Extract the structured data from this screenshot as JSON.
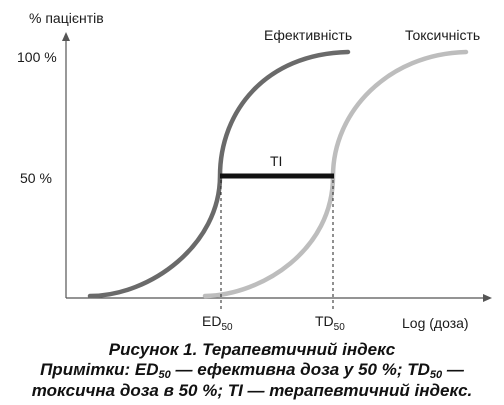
{
  "figure": {
    "y_axis_label": "% пацієнтів",
    "x_axis_label": "Log (доза)",
    "ticks": {
      "y100": "100 %",
      "y50": "50 %"
    },
    "curves": {
      "efficacy_label": "Ефективність",
      "toxicity_label": "Токсичність",
      "efficacy_color": "#6a6a6a",
      "toxicity_color": "#bdbdbd"
    },
    "ti_label": "TI",
    "ed": {
      "main": "ED",
      "sub": "50"
    },
    "td": {
      "main": "TD",
      "sub": "50"
    }
  },
  "caption": {
    "title": "Рисунок 1. Терапевтичний індекс",
    "note_prefix": "Примітки: ",
    "ed_main": "ED",
    "ed_sub": "50",
    "ed_desc": " — ефективна доза у 50 %; ",
    "td_main": "TD",
    "td_sub": "50",
    "td_desc": " —",
    "line2": "токсична доза в 50 %; TI — терапевтичний індекс."
  }
}
